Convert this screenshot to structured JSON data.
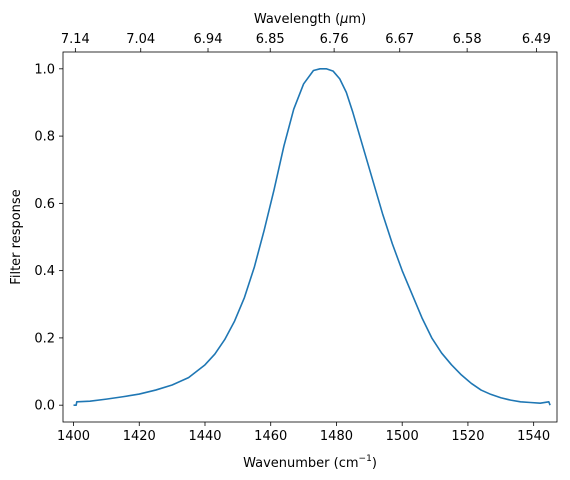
{
  "chart_data": {
    "type": "line",
    "title": "",
    "xlabel_base": "Wavenumber (cm",
    "xlabel_sup": "−1",
    "xlabel_tail": ")",
    "top_xlabel_base": "Wavelength (",
    "top_xlabel_mu": "μ",
    "top_xlabel_tail": "m)",
    "ylabel": "Filter response",
    "xlim": [
      1396.8,
      1547.1
    ],
    "ylim": [
      -0.05,
      1.05
    ],
    "x_ticks": [
      1400,
      1420,
      1440,
      1460,
      1480,
      1500,
      1520,
      1540
    ],
    "x_tick_labels": [
      "1400",
      "1420",
      "1440",
      "1460",
      "1480",
      "1500",
      "1520",
      "1540"
    ],
    "y_ticks": [
      0.0,
      0.2,
      0.4,
      0.6,
      0.8,
      1.0
    ],
    "y_tick_labels": [
      "0.0",
      "0.2",
      "0.4",
      "0.6",
      "0.8",
      "1.0"
    ],
    "top_ticks": [
      1400.56,
      1420.45,
      1440.92,
      1459.85,
      1479.29,
      1499.25,
      1519.76,
      1540.83
    ],
    "top_tick_labels": [
      "7.14",
      "7.04",
      "6.94",
      "6.85",
      "6.76",
      "6.67",
      "6.58",
      "6.49"
    ],
    "series": [
      {
        "color": "#1f77b4",
        "x": [
          1400,
          1400.8,
          1401,
          1405,
          1410,
          1415,
          1420,
          1425,
          1430,
          1435,
          1440,
          1443,
          1446,
          1449,
          1452,
          1455,
          1458,
          1461,
          1464,
          1467,
          1470,
          1473,
          1475,
          1477,
          1479,
          1481,
          1483,
          1485,
          1488,
          1491,
          1494,
          1497,
          1500,
          1503,
          1506,
          1509,
          1512,
          1515,
          1518,
          1521,
          1524,
          1527,
          1530,
          1533,
          1536,
          1539,
          1542,
          1544.6,
          1544.8,
          1545
        ],
        "y": [
          0.0,
          0.0,
          0.01,
          0.012,
          0.018,
          0.025,
          0.033,
          0.045,
          0.06,
          0.082,
          0.12,
          0.152,
          0.195,
          0.25,
          0.32,
          0.41,
          0.52,
          0.64,
          0.77,
          0.88,
          0.955,
          0.995,
          1.0,
          1.0,
          0.993,
          0.97,
          0.93,
          0.87,
          0.77,
          0.67,
          0.57,
          0.48,
          0.4,
          0.33,
          0.26,
          0.2,
          0.155,
          0.12,
          0.09,
          0.065,
          0.045,
          0.032,
          0.022,
          0.015,
          0.01,
          0.008,
          0.006,
          0.01,
          0.005,
          0.0
        ]
      }
    ],
    "grid": false,
    "legend": "none"
  }
}
